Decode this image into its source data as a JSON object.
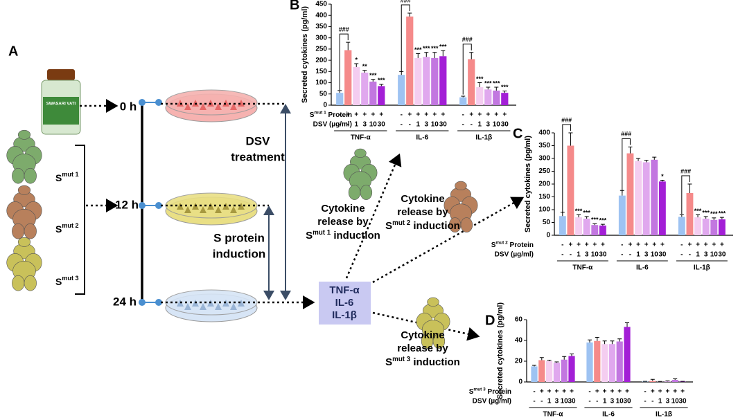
{
  "diagram": {
    "panel": "A",
    "bottle_text": "SWASARI VATI",
    "times": [
      "0 h",
      "12 h",
      "24 h"
    ],
    "variants": [
      {
        "base": "S",
        "sup": "mut 1"
      },
      {
        "base": "S",
        "sup": "mut 2"
      },
      {
        "base": "S",
        "sup": "mut 3"
      }
    ],
    "dsv_treatment": [
      "DSV",
      "treatment"
    ],
    "s_protein_induction": [
      "S protein",
      "induction"
    ],
    "cytokine_box": [
      "TNF-α",
      "IL-6",
      "IL-1β"
    ],
    "releases": [
      {
        "lines": [
          "Cytokine",
          "release by"
        ],
        "base": "S",
        "sup": "mut 1",
        "rest": " induction"
      },
      {
        "lines": [
          "Cytokine",
          "release by"
        ],
        "base": "S",
        "sup": "mut 2",
        "rest": " induction"
      },
      {
        "lines": [
          "Cytokine",
          "release by"
        ],
        "base": "S",
        "sup": "mut 3",
        "rest": " induction"
      }
    ]
  },
  "chart_data": [
    {
      "type": "bar",
      "panel": "B",
      "ylabel": "Secreted cytokines (pg/ml)",
      "categories": [
        "TNF-α",
        "IL-6",
        "IL-1β"
      ],
      "ylim": [
        0,
        450
      ],
      "yticks": [
        0,
        50,
        100,
        150,
        200,
        250,
        300,
        350,
        400,
        450
      ],
      "protein_label": {
        "base": "S",
        "sup": "mut 1",
        "rest": " Protein"
      },
      "dose_label": "DSV (µg/ml)",
      "protein_signs": [
        "-",
        "+",
        "+",
        "+",
        "+",
        "+"
      ],
      "dose_signs": [
        "-",
        "-",
        "1",
        "3",
        "10",
        "30"
      ],
      "series": [
        {
          "color": "#9ec3f2",
          "values": [
            55,
            135,
            35
          ],
          "errors": [
            10,
            15,
            5
          ],
          "annotations": [
            null,
            null,
            null
          ]
        },
        {
          "color": "#f58a8a",
          "values": [
            245,
            395,
            205
          ],
          "errors": [
            35,
            15,
            30
          ],
          "annotations": [
            "###",
            "###",
            "###"
          ]
        },
        {
          "color": "#f4cdf0",
          "values": [
            170,
            210,
            80
          ],
          "errors": [
            15,
            20,
            20
          ],
          "annotations": [
            "*",
            "***",
            "***"
          ]
        },
        {
          "color": "#e0a8ee",
          "values": [
            145,
            215,
            70
          ],
          "errors": [
            10,
            20,
            10
          ],
          "annotations": [
            "**",
            "***",
            "***"
          ]
        },
        {
          "color": "#c277e0",
          "values": [
            105,
            210,
            65
          ],
          "errors": [
            10,
            25,
            15
          ],
          "annotations": [
            "***",
            "***",
            "***"
          ]
        },
        {
          "color": "#a31fd6",
          "values": [
            85,
            218,
            55
          ],
          "errors": [
            8,
            25,
            8
          ],
          "annotations": [
            "***",
            "***",
            "***"
          ]
        }
      ]
    },
    {
      "type": "bar",
      "panel": "C",
      "ylabel": "Secreted cytokines (pg/ml)",
      "categories": [
        "TNF-α",
        "IL-6",
        "IL-1β"
      ],
      "ylim": [
        0,
        400
      ],
      "yticks": [
        0,
        50,
        100,
        150,
        200,
        250,
        300,
        350,
        400
      ],
      "protein_label": {
        "base": "S",
        "sup": "mut 2",
        "rest": " Protein"
      },
      "dose_label": "DSV (µg/ml)",
      "protein_signs": [
        "-",
        "+",
        "+",
        "+",
        "+",
        "+"
      ],
      "dose_signs": [
        "-",
        "-",
        "1",
        "3",
        "10",
        "30"
      ],
      "series": [
        {
          "color": "#9ec3f2",
          "values": [
            75,
            155,
            72
          ],
          "errors": [
            15,
            20,
            8
          ],
          "annotations": [
            null,
            null,
            null
          ]
        },
        {
          "color": "#f58a8a",
          "values": [
            350,
            320,
            165
          ],
          "errors": [
            50,
            25,
            35
          ],
          "annotations": [
            "###",
            "###",
            "###"
          ]
        },
        {
          "color": "#f4cdf0",
          "values": [
            70,
            290,
            70
          ],
          "errors": [
            10,
            10,
            10
          ],
          "annotations": [
            "***",
            null,
            "***"
          ]
        },
        {
          "color": "#e0a8ee",
          "values": [
            65,
            285,
            65
          ],
          "errors": [
            8,
            8,
            8
          ],
          "annotations": [
            "***",
            null,
            "***"
          ]
        },
        {
          "color": "#c277e0",
          "values": [
            40,
            295,
            60
          ],
          "errors": [
            5,
            10,
            8
          ],
          "annotations": [
            "***",
            null,
            "***"
          ]
        },
        {
          "color": "#a31fd6",
          "values": [
            38,
            210,
            62
          ],
          "errors": [
            5,
            5,
            8
          ],
          "annotations": [
            "***",
            "*",
            "***"
          ]
        }
      ]
    },
    {
      "type": "bar",
      "panel": "D",
      "ylabel": "Secreted cytokines (pg/ml)",
      "categories": [
        "TNF-α",
        "IL-6",
        "IL-1β"
      ],
      "ylim": [
        0,
        60
      ],
      "yticks": [
        0,
        20,
        40,
        60
      ],
      "protein_label": {
        "base": "S",
        "sup": "mut 3",
        "rest": " Protein"
      },
      "dose_label": "DSV (µg/ml)",
      "protein_signs": [
        "-",
        "+",
        "+",
        "+",
        "+",
        "+"
      ],
      "dose_signs": [
        "-",
        "-",
        "1",
        "3",
        "10",
        "30"
      ],
      "series": [
        {
          "color": "#9ec3f2",
          "values": [
            15,
            38,
            0.3
          ],
          "errors": [
            1,
            2.5,
            0.3
          ],
          "annotations": [
            null,
            null,
            null
          ]
        },
        {
          "color": "#f58a8a",
          "values": [
            21,
            39.5,
            1
          ],
          "errors": [
            2.5,
            3.5,
            1.5
          ],
          "annotations": [
            null,
            null,
            null
          ]
        },
        {
          "color": "#f4cdf0",
          "values": [
            20,
            36.5,
            0.2
          ],
          "errors": [
            1,
            3,
            0.3
          ],
          "annotations": [
            null,
            null,
            null
          ]
        },
        {
          "color": "#e0a8ee",
          "values": [
            18.5,
            36.5,
            0.5
          ],
          "errors": [
            0.8,
            3,
            0.5
          ],
          "annotations": [
            null,
            null,
            null
          ]
        },
        {
          "color": "#c277e0",
          "values": [
            21.5,
            39,
            2
          ],
          "errors": [
            3,
            2.5,
            1
          ],
          "annotations": [
            null,
            null,
            null
          ]
        },
        {
          "color": "#a31fd6",
          "values": [
            25,
            53,
            0.3
          ],
          "errors": [
            2,
            4,
            0.3
          ],
          "annotations": [
            null,
            null,
            null
          ]
        }
      ]
    }
  ]
}
